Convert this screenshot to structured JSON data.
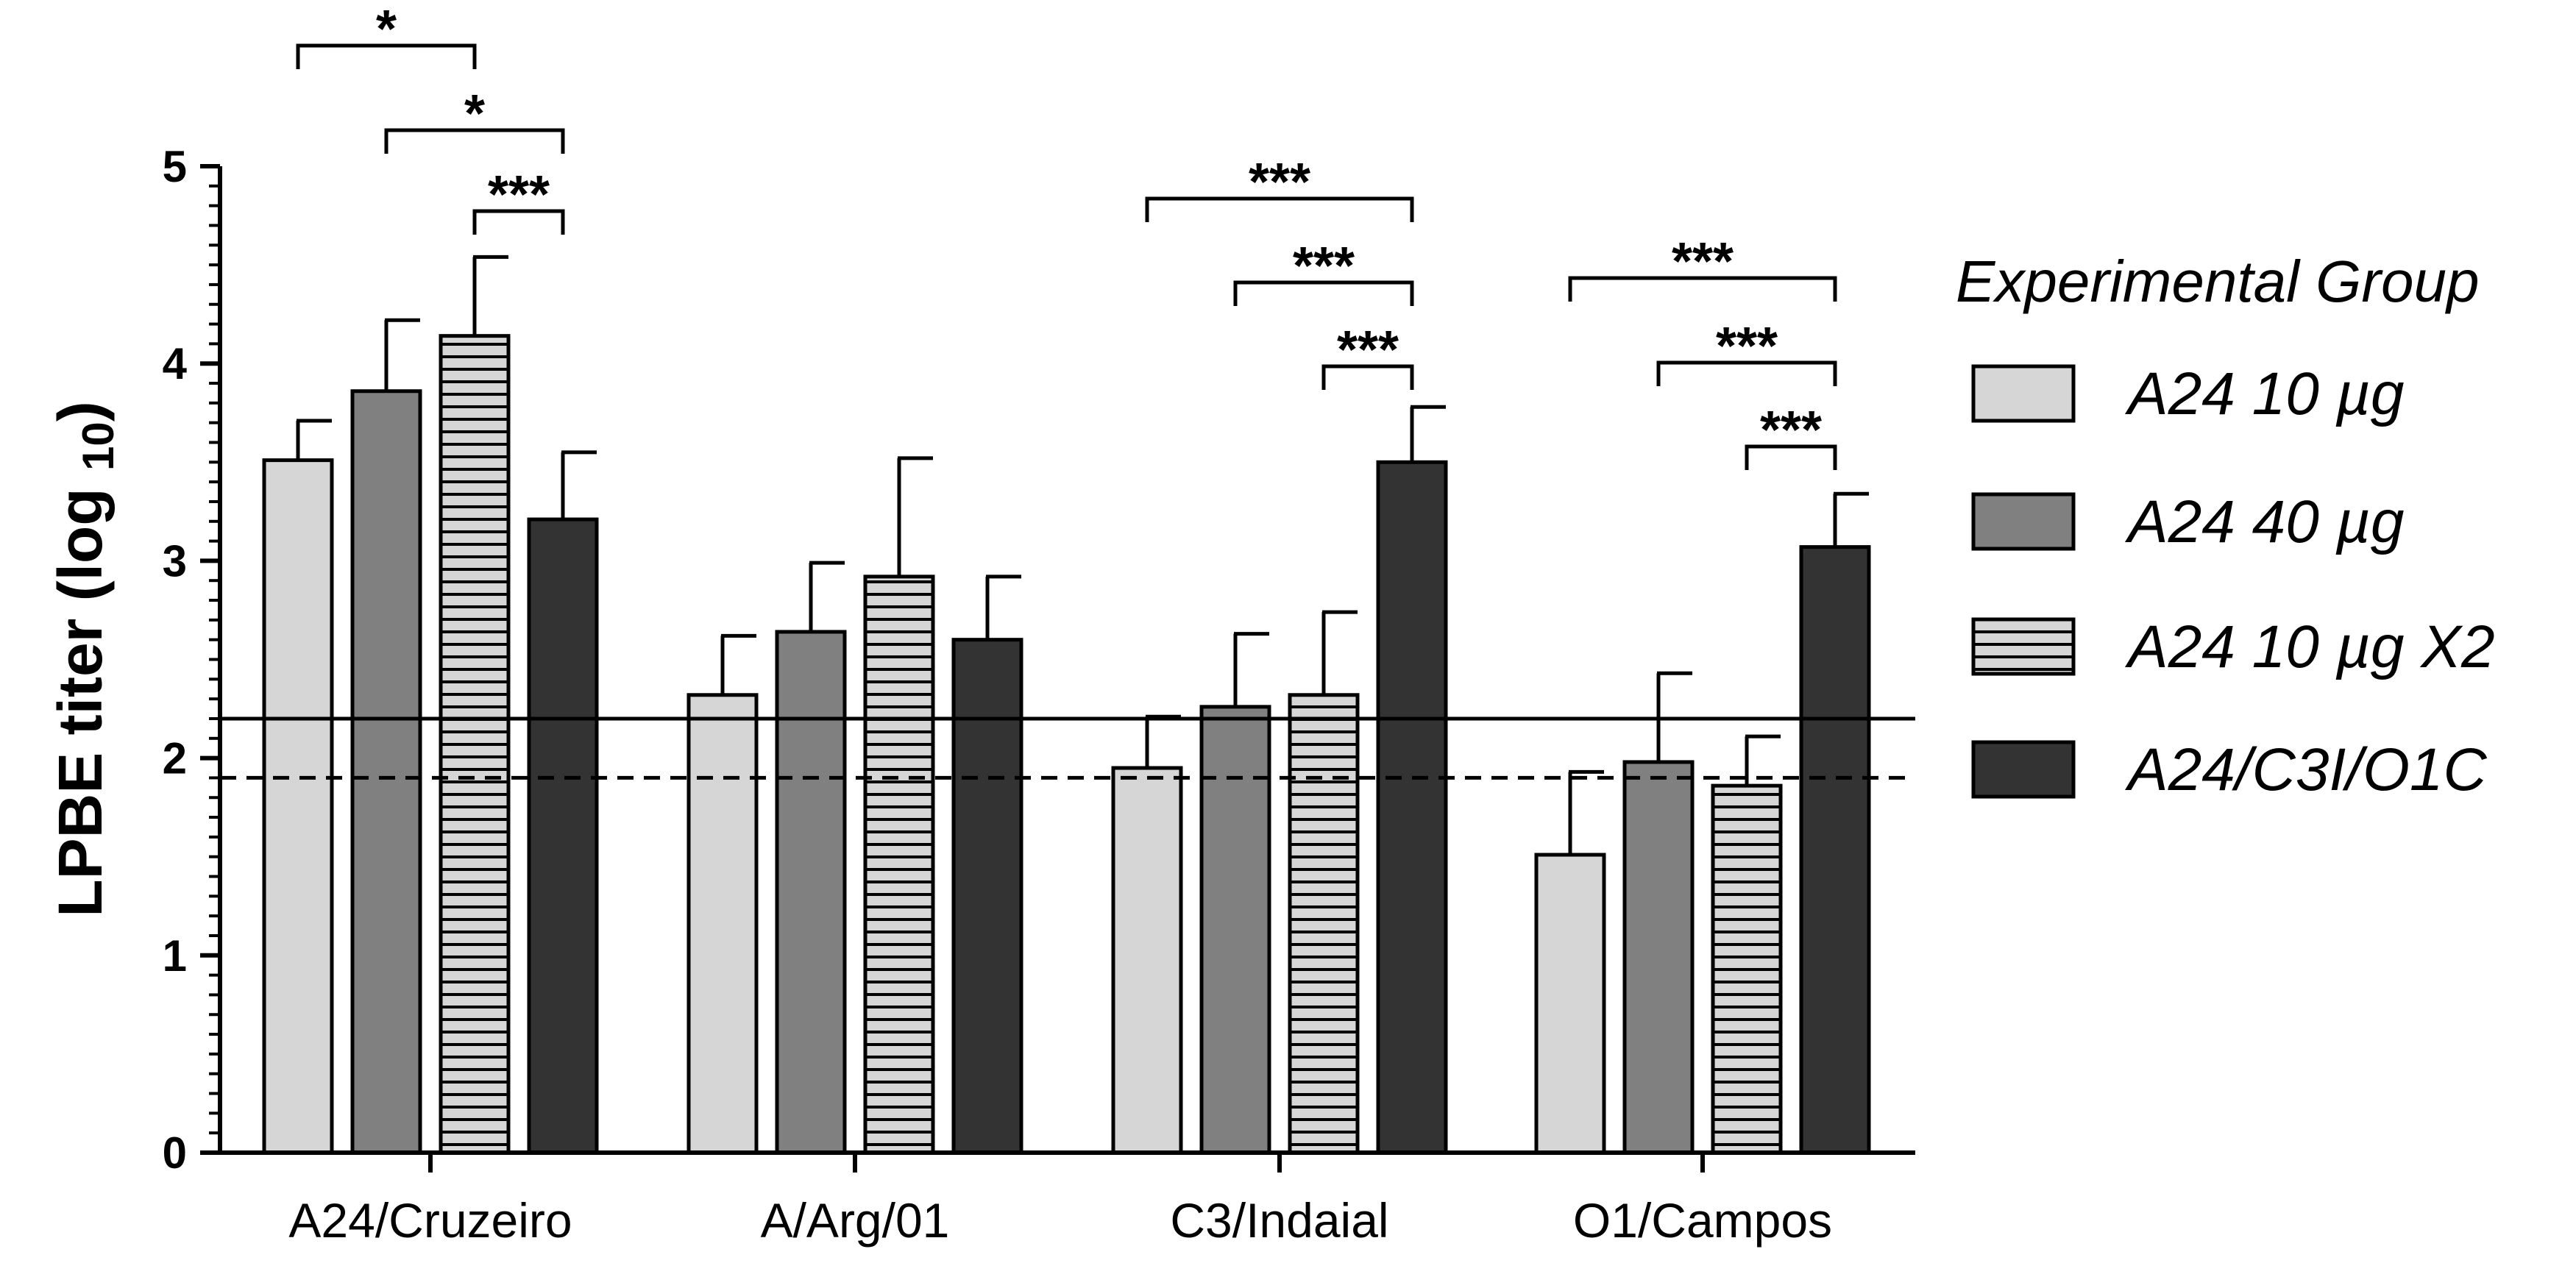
{
  "chart_data": {
    "type": "bar",
    "ylabel_main": "LPBE titer (log ",
    "ylabel_sub": "10",
    "ylabel_close": ")",
    "ylim": [
      0,
      5
    ],
    "yticks": [
      "0",
      "1",
      "2",
      "3",
      "4",
      "5"
    ],
    "categories": [
      "A24/Cruzeiro",
      "A/Arg/01",
      "C3/Indaial",
      "O1/Campos"
    ],
    "legend_title": "Experimental Group",
    "series": [
      {
        "name": "A24 10 µg",
        "fill": "#d6d6d6",
        "hatch": false,
        "values": [
          3.51,
          2.32,
          1.95,
          1.51
        ],
        "errors": [
          0.2,
          0.3,
          0.26,
          0.42
        ]
      },
      {
        "name": "A24 40 µg",
        "fill": "#808080",
        "hatch": false,
        "values": [
          3.86,
          2.64,
          2.26,
          1.98
        ],
        "errors": [
          0.36,
          0.35,
          0.37,
          0.45
        ]
      },
      {
        "name": "A24 10 µg X2",
        "fill": "#d6d6d6",
        "hatch": true,
        "values": [
          4.14,
          2.92,
          2.32,
          1.86
        ],
        "errors": [
          0.4,
          0.6,
          0.42,
          0.25
        ]
      },
      {
        "name": "A24/C3I/O1C",
        "fill": "#333333",
        "hatch": false,
        "values": [
          3.21,
          2.6,
          3.5,
          3.07
        ],
        "errors": [
          0.34,
          0.32,
          0.28,
          0.27
        ]
      }
    ],
    "reference_lines": [
      {
        "style": "solid",
        "value": 2.2
      },
      {
        "style": "dashed",
        "value": 1.9
      }
    ],
    "significance": [
      {
        "category": 0,
        "from_series": 0,
        "to_series": 2,
        "label": "*"
      },
      {
        "category": 0,
        "from_series": 1,
        "to_series": 3,
        "label": "*"
      },
      {
        "category": 0,
        "from_series": 2,
        "to_series": 3,
        "label": "***"
      },
      {
        "category": 2,
        "from_series": 0,
        "to_series": 3,
        "label": "***"
      },
      {
        "category": 2,
        "from_series": 1,
        "to_series": 3,
        "label": "***"
      },
      {
        "category": 2,
        "from_series": 2,
        "to_series": 3,
        "label": "***"
      },
      {
        "category": 3,
        "from_series": 0,
        "to_series": 3,
        "label": "***"
      },
      {
        "category": 3,
        "from_series": 1,
        "to_series": 3,
        "label": "***"
      },
      {
        "category": 3,
        "from_series": 2,
        "to_series": 3,
        "label": "***"
      }
    ]
  }
}
